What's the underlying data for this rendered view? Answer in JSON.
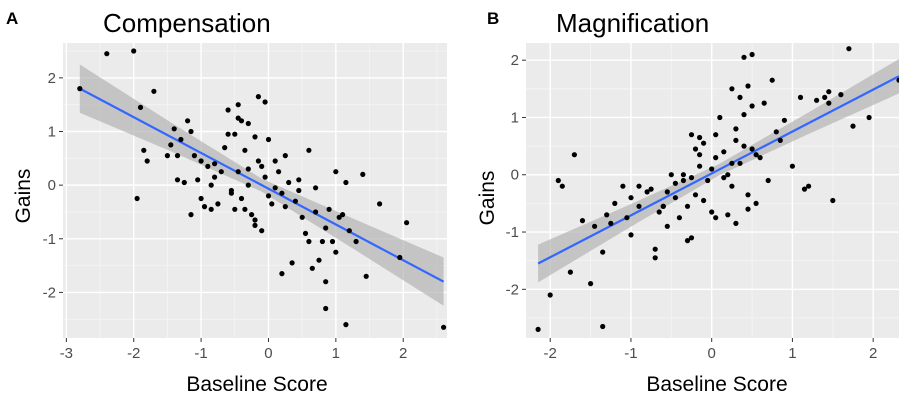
{
  "colors": {
    "panel_background": "#ebebeb",
    "grid_major": "#ffffff",
    "grid_minor": "#f5f5f5",
    "fit_line": "#3366ff",
    "confidence_band": "#b3b3b3",
    "points": "#000000",
    "tick_label": "#4d4d4d"
  },
  "chart_data": [
    {
      "type": "scatter",
      "panel_letter": "A",
      "title": "Compensation",
      "xlabel": "Baseline Score",
      "ylabel": "Gains",
      "xlim": [
        -3.05,
        2.65
      ],
      "ylim": [
        -2.85,
        2.65
      ],
      "xticks": [
        -3,
        -2,
        -1,
        0,
        1,
        2
      ],
      "yticks": [
        -2,
        -1,
        0,
        1,
        2
      ],
      "xtick_labels": [
        "-3",
        "-2",
        "-1",
        "0",
        "1",
        "2"
      ],
      "ytick_labels": [
        "-2",
        "-1",
        "0",
        "1",
        "2"
      ],
      "grid": true,
      "fit": {
        "method": "linear",
        "x": [
          -2.8,
          2.6
        ],
        "y": [
          1.8,
          -1.8
        ],
        "ci_halfwidth": [
          0.45,
          0.27,
          0.12,
          0.28,
          0.45
        ]
      },
      "points": {
        "x": [
          -2.8,
          -2.4,
          -2.0,
          -1.95,
          -1.9,
          -1.85,
          -1.8,
          -1.7,
          -1.5,
          -1.45,
          -1.4,
          -1.35,
          -1.3,
          -1.25,
          -1.2,
          -1.15,
          -1.15,
          -1.1,
          -1.05,
          -1.0,
          -1.0,
          -0.95,
          -0.9,
          -0.85,
          -0.85,
          -0.8,
          -0.75,
          -0.7,
          -0.65,
          -0.6,
          -0.55,
          -0.5,
          -0.45,
          -0.45,
          -0.4,
          -0.4,
          -0.35,
          -0.35,
          -0.3,
          -0.3,
          -0.25,
          -0.2,
          -0.2,
          -0.15,
          -0.15,
          -0.1,
          -0.1,
          -0.05,
          -0.05,
          0.0,
          0.0,
          0.05,
          0.1,
          0.1,
          0.15,
          0.2,
          0.25,
          0.25,
          0.3,
          0.35,
          0.4,
          0.45,
          0.5,
          0.55,
          0.6,
          0.65,
          0.7,
          0.7,
          0.75,
          0.8,
          0.85,
          0.85,
          0.9,
          0.95,
          1.0,
          1.0,
          1.05,
          1.1,
          1.15,
          1.2,
          1.3,
          1.4,
          1.45,
          1.65,
          1.95,
          2.05,
          2.6,
          -0.55,
          -0.5,
          0.6,
          0.85,
          1.15,
          -1.35,
          -0.8,
          0.2,
          -0.6,
          -0.45,
          -0.2,
          0.45,
          -0.3
        ],
        "y": [
          1.8,
          2.45,
          2.5,
          -0.25,
          1.45,
          0.65,
          0.45,
          1.75,
          0.55,
          0.75,
          1.05,
          0.55,
          0.85,
          0.05,
          1.2,
          1.0,
          -0.55,
          0.55,
          0.1,
          0.45,
          -0.25,
          -0.4,
          0.35,
          0.0,
          -0.45,
          0.15,
          -0.35,
          0.25,
          0.7,
          1.4,
          -0.15,
          0.95,
          1.5,
          0.25,
          1.2,
          -0.25,
          0.65,
          -0.45,
          1.15,
          0.0,
          -0.55,
          0.9,
          -0.75,
          1.65,
          0.45,
          0.35,
          -0.85,
          1.55,
          0.15,
          -0.2,
          0.85,
          -0.35,
          0.45,
          -0.05,
          0.25,
          -0.15,
          -0.4,
          0.55,
          0.05,
          -1.45,
          -0.3,
          0.1,
          -0.6,
          -0.9,
          0.65,
          -1.55,
          -0.5,
          -0.05,
          -1.4,
          -1.05,
          -1.8,
          -0.8,
          -0.45,
          -1.05,
          -1.25,
          0.25,
          -0.6,
          -0.55,
          -2.6,
          -0.85,
          -1.05,
          0.2,
          -1.7,
          -0.35,
          -1.35,
          -0.7,
          -2.65,
          -0.1,
          -0.45,
          -1.05,
          -2.3,
          0.05,
          0.1,
          0.4,
          -1.65,
          0.95,
          1.25,
          -0.65,
          -0.1,
          0.3
        ]
      }
    },
    {
      "type": "scatter",
      "panel_letter": "B",
      "title": "Magnification",
      "xlabel": "Baseline Score",
      "ylabel": "Gains",
      "xlim": [
        -2.3,
        2.32
      ],
      "ylim": [
        -2.85,
        2.3
      ],
      "xticks": [
        -2,
        -1,
        0,
        1,
        2
      ],
      "yticks": [
        -2,
        -1,
        0,
        1,
        2
      ],
      "xtick_labels": [
        "-2",
        "-1",
        "0",
        "1",
        "2"
      ],
      "ytick_labels": [
        "-2",
        "-1",
        "0",
        "1",
        "2"
      ],
      "grid": true,
      "fit": {
        "method": "linear",
        "x": [
          -2.15,
          2.32
        ],
        "y": [
          -1.55,
          1.72
        ],
        "ci_halfwidth": [
          0.33,
          0.2,
          0.1,
          0.19,
          0.3
        ]
      },
      "points": {
        "x": [
          -2.15,
          -2.0,
          -1.9,
          -1.85,
          -1.75,
          -1.7,
          -1.6,
          -1.5,
          -1.45,
          -1.35,
          -1.3,
          -1.2,
          -1.1,
          -1.05,
          -1.0,
          -0.9,
          -0.9,
          -0.8,
          -0.75,
          -0.7,
          -0.65,
          -0.6,
          -0.55,
          -0.5,
          -0.45,
          -0.45,
          -0.4,
          -0.35,
          -0.3,
          -0.3,
          -0.25,
          -0.25,
          -0.2,
          -0.2,
          -0.15,
          -0.15,
          -0.1,
          -0.1,
          -0.05,
          0.0,
          0.0,
          0.05,
          0.1,
          0.15,
          0.2,
          0.2,
          0.25,
          0.25,
          0.3,
          0.3,
          0.35,
          0.4,
          0.4,
          0.45,
          0.45,
          0.5,
          0.5,
          0.55,
          0.6,
          0.65,
          0.7,
          0.75,
          0.8,
          0.85,
          0.9,
          1.0,
          1.1,
          1.15,
          1.2,
          1.3,
          1.4,
          1.45,
          1.5,
          1.6,
          1.7,
          1.75,
          1.95,
          2.32,
          -1.0,
          -0.7,
          -0.35,
          0.05,
          0.35,
          0.45,
          -0.55,
          -0.25,
          0.15,
          0.55,
          -1.25,
          -1.35,
          0.4,
          1.45,
          0.05,
          -0.6,
          -0.15,
          0.25,
          0.5,
          0.3
        ],
        "y": [
          -2.7,
          -2.1,
          -0.1,
          -0.2,
          -1.7,
          0.35,
          -0.8,
          -1.9,
          -0.9,
          -2.65,
          -0.7,
          -0.5,
          -0.2,
          -0.75,
          -1.05,
          -0.55,
          -0.2,
          -0.3,
          -0.25,
          -1.3,
          -0.65,
          -0.55,
          -0.9,
          0.0,
          -0.15,
          -0.4,
          -0.75,
          -0.1,
          -0.55,
          -1.15,
          0.7,
          -0.05,
          0.45,
          -0.35,
          0.65,
          0.15,
          0.55,
          -0.45,
          -0.1,
          0.1,
          -0.65,
          0.3,
          1.0,
          0.4,
          0.0,
          -0.7,
          1.5,
          0.2,
          0.8,
          -0.85,
          1.35,
          2.05,
          0.5,
          1.55,
          -0.35,
          2.1,
          1.2,
          -0.5,
          0.3,
          1.25,
          -0.1,
          1.65,
          0.75,
          0.6,
          0.95,
          0.15,
          1.35,
          -0.25,
          -0.2,
          1.3,
          1.35,
          1.45,
          -0.45,
          1.4,
          2.2,
          0.85,
          1.0,
          1.65,
          -0.4,
          -1.45,
          0.0,
          -0.75,
          0.2,
          -0.6,
          -0.3,
          -1.1,
          -0.05,
          0.35,
          -0.85,
          -1.35,
          1.05,
          1.25,
          0.7,
          -0.55,
          0.35,
          -0.2,
          0.45,
          0.6
        ]
      }
    }
  ]
}
